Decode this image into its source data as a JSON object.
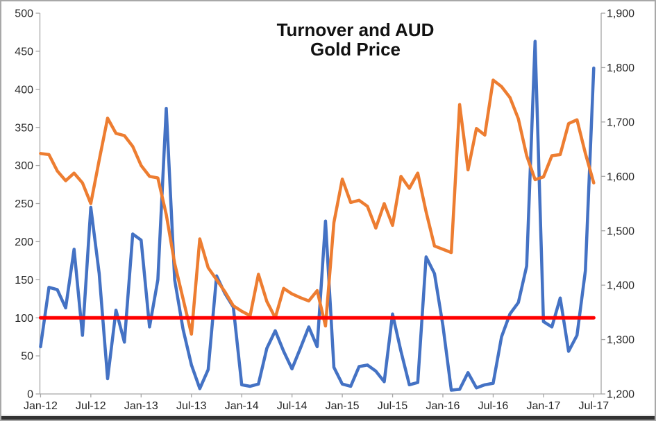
{
  "window": {
    "background": "#ffffff",
    "border_color": "#a8a8a8",
    "bottom_edge_color": "#333333"
  },
  "chart_data": {
    "type": "line",
    "title_lines": [
      "Turnover and AUD",
      "Gold Price"
    ],
    "grid": false,
    "legend": false,
    "x_axis": {
      "start": "Jan-12",
      "end": "Jul-17",
      "interval": "monthly",
      "n_points": 67,
      "tick_labels": [
        "Jan-12",
        "Jul-12",
        "Jan-13",
        "Jul-13",
        "Jan-14",
        "Jul-14",
        "Jan-15",
        "Jul-15",
        "Jan-16",
        "Jul-16",
        "Jan-17",
        "Jul-17"
      ]
    },
    "left_axis": {
      "min": 0,
      "max": 500,
      "step": 50,
      "tick_labels": [
        "0",
        "50",
        "100",
        "150",
        "200",
        "250",
        "300",
        "350",
        "400",
        "450",
        "500"
      ]
    },
    "right_axis": {
      "min": 1200,
      "max": 1900,
      "step": 100,
      "tick_labels": [
        "1,200",
        "1,300",
        "1,400",
        "1,500",
        "1,600",
        "1,700",
        "1,800",
        "1,900"
      ]
    },
    "axis_color": "#a6a6a6",
    "text_color": "#262626",
    "series": [
      {
        "name": "Turnover",
        "axis": "left",
        "color": "#4472C4",
        "values": [
          62,
          140,
          137,
          113,
          190,
          77,
          245,
          158,
          20,
          110,
          68,
          210,
          202,
          88,
          150,
          375,
          150,
          85,
          38,
          7,
          32,
          155,
          132,
          114,
          12,
          10,
          13,
          60,
          83,
          56,
          33,
          60,
          88,
          62,
          227,
          35,
          13,
          10,
          36,
          38,
          30,
          16,
          105,
          56,
          12,
          15,
          180,
          158,
          90,
          5,
          6,
          28,
          8,
          12,
          14,
          75,
          105,
          120,
          168,
          463,
          95,
          88,
          126,
          56,
          77,
          162,
          428
        ]
      },
      {
        "name": "AUD Gold Price",
        "axis": "right",
        "color": "#ED7D31",
        "values": [
          1642,
          1640,
          1610,
          1592,
          1606,
          1588,
          1550,
          1630,
          1707,
          1679,
          1675,
          1655,
          1620,
          1600,
          1597,
          1530,
          1440,
          1375,
          1310,
          1485,
          1432,
          1410,
          1388,
          1362,
          1352,
          1344,
          1420,
          1370,
          1340,
          1394,
          1384,
          1377,
          1371,
          1390,
          1325,
          1515,
          1595,
          1552,
          1556,
          1545,
          1505,
          1550,
          1510,
          1600,
          1578,
          1606,
          1535,
          1472,
          1466,
          1460,
          1732,
          1612,
          1688,
          1676,
          1777,
          1765,
          1745,
          1706,
          1638,
          1594,
          1599,
          1638,
          1640,
          1697,
          1704,
          1642,
          1588
        ]
      },
      {
        "name": "Reference line",
        "axis": "left",
        "constant": 100,
        "color": "#FF0000"
      }
    ]
  }
}
